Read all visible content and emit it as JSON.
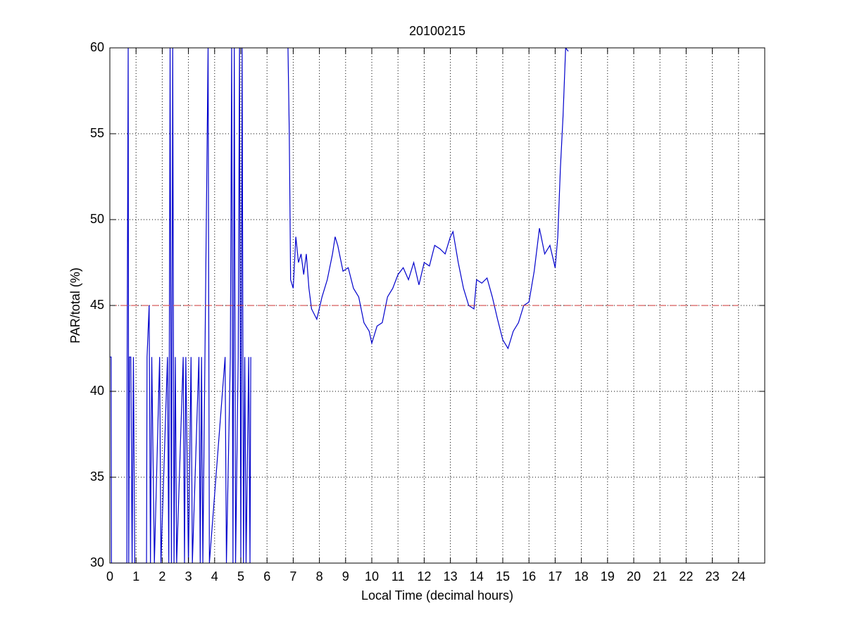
{
  "chart_data": {
    "type": "line",
    "title": "20100215",
    "xlabel": "Local Time (decimal hours)",
    "ylabel": "PAR/total (%)",
    "xlim": [
      0,
      25
    ],
    "ylim": [
      30,
      60
    ],
    "xticks": [
      0,
      1,
      2,
      3,
      4,
      5,
      6,
      7,
      8,
      9,
      10,
      11,
      12,
      13,
      14,
      15,
      16,
      17,
      18,
      19,
      20,
      21,
      22,
      23,
      24
    ],
    "yticks": [
      30,
      35,
      40,
      45,
      50,
      55,
      60
    ],
    "grid": true,
    "reference_line": {
      "y": 45,
      "x": [
        0,
        24
      ],
      "color": "#cc3333"
    },
    "x": [
      0,
      0.05,
      0.06,
      0.65,
      0.66,
      0.7,
      0.72,
      0.75,
      0.8,
      0.85,
      0.9,
      0.95,
      1.4,
      1.42,
      1.5,
      1.55,
      1.6,
      1.7,
      1.9,
      1.95,
      2.2,
      2.25,
      2.3,
      2.35,
      2.4,
      2.45,
      2.5,
      2.55,
      2.8,
      2.85,
      2.9,
      3,
      3.1,
      3.15,
      3.4,
      3.45,
      3.5,
      3.55,
      3.75,
      3.8,
      4.4,
      4.45,
      4.6,
      4.65,
      4.7,
      4.75,
      4.8,
      4.9,
      4.95,
      5.0,
      5.05,
      5.1,
      5.15,
      5.2,
      5.3,
      5.35,
      5.38,
      6,
      6.8,
      6.85,
      6.88,
      6.9,
      7.0,
      7.1,
      7.2,
      7.3,
      7.4,
      7.5,
      7.6,
      7.7,
      7.9,
      8.1,
      8.3,
      8.5,
      8.6,
      8.7,
      8.9,
      9.1,
      9.3,
      9.5,
      9.7,
      9.9,
      10,
      10.2,
      10.4,
      10.6,
      10.8,
      11,
      11.2,
      11.4,
      11.6,
      11.8,
      12,
      12.2,
      12.4,
      12.6,
      12.8,
      13,
      13.1,
      13.3,
      13.5,
      13.7,
      13.9,
      14,
      14.2,
      14.4,
      14.6,
      14.8,
      15,
      15.2,
      15.4,
      15.6,
      15.8,
      16,
      16.2,
      16.4,
      16.6,
      16.8,
      17,
      17.1,
      17.2,
      17.3,
      17.4,
      17.5
    ],
    "series": [
      {
        "color": "#0000cc",
        "values": [
          42,
          42,
          30,
          30,
          42,
          60,
          30,
          42,
          42,
          30,
          42,
          30,
          30,
          42,
          45,
          30,
          42,
          30,
          42,
          30,
          42,
          30,
          60,
          30,
          60,
          30,
          42,
          30,
          42,
          30,
          42,
          30,
          42,
          30,
          42,
          30,
          42,
          30,
          60,
          30,
          42,
          30,
          42,
          60,
          30,
          60,
          30,
          42,
          60,
          30,
          60,
          30,
          42,
          30,
          42,
          30,
          42,
          null,
          60,
          55,
          50,
          46.5,
          46,
          49,
          47.5,
          48,
          46.8,
          48,
          46,
          44.8,
          44.2,
          45.5,
          46.5,
          48,
          49,
          48.5,
          47,
          47.2,
          46,
          45.5,
          44,
          43.5,
          42.8,
          43.8,
          44,
          45.5,
          46,
          46.8,
          47.2,
          46.5,
          47.5,
          46.2,
          47.5,
          47.3,
          48.5,
          48.3,
          48,
          49,
          49.3,
          47.5,
          46,
          45,
          44.8,
          46.5,
          46.3,
          46.6,
          45.5,
          44.2,
          43,
          42.5,
          43.5,
          44,
          45,
          45.2,
          47,
          49.5,
          48,
          48.5,
          47.2,
          49,
          53,
          56,
          60,
          59.8
        ]
      }
    ]
  }
}
